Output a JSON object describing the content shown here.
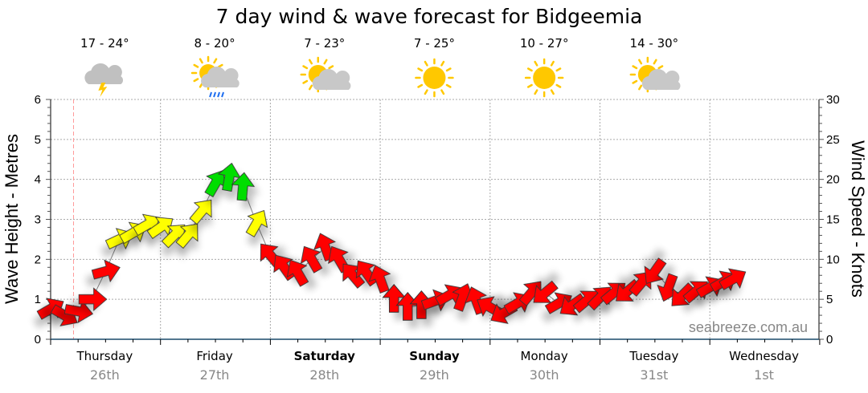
{
  "chart_data": {
    "type": "scatter",
    "title": "7 day wind & wave forecast for Bidgeemia",
    "ylabel_left": "Wave Height - Metres",
    "ylabel_right": "Wind Speed - Knots",
    "ylim_left": [
      0,
      6
    ],
    "ylim_right": [
      0,
      30
    ],
    "yticks_left": [
      "0",
      "1",
      "2",
      "3",
      "4",
      "5",
      "6"
    ],
    "yticks_right": [
      "0",
      "5",
      "10",
      "15",
      "20",
      "25",
      "30"
    ],
    "grid": true,
    "days": [
      {
        "name": "Thursday",
        "date": "26th",
        "bold": false,
        "temp": "17 - 24°",
        "icon": "storm-icon"
      },
      {
        "name": "Friday",
        "date": "27th",
        "bold": false,
        "temp": "8 - 20°",
        "icon": "sun-cloud-rain-icon"
      },
      {
        "name": "Saturday",
        "date": "28th",
        "bold": true,
        "temp": "7 - 23°",
        "icon": "partly-cloudy-icon"
      },
      {
        "name": "Sunday",
        "date": "29th",
        "bold": true,
        "temp": "7 - 25°",
        "icon": "sunny-icon"
      },
      {
        "name": "Monday",
        "date": "30th",
        "bold": false,
        "temp": "10 - 27°",
        "icon": "sunny-icon"
      },
      {
        "name": "Tuesday",
        "date": "31st",
        "bold": false,
        "temp": "14 - 30°",
        "icon": "partly-cloudy-icon"
      },
      {
        "name": "Wednesday",
        "date": "1st",
        "bold": false
      }
    ],
    "wind_series": {
      "fields": [
        "hour",
        "knots",
        "direction_deg"
      ],
      "colors": {
        "light": "#ff0000",
        "moderate": "#ffff00",
        "strong": "#00dd00"
      },
      "points": [
        [
          0,
          3.8,
          60
        ],
        [
          3,
          3.0,
          120
        ],
        [
          6,
          3.5,
          100
        ],
        [
          9,
          5.0,
          90
        ],
        [
          12,
          8.5,
          75
        ],
        [
          15,
          12.5,
          65
        ],
        [
          18,
          13.3,
          60
        ],
        [
          21,
          14.3,
          60
        ],
        [
          24,
          14,
          55
        ],
        [
          27,
          13,
          45
        ],
        [
          30,
          13,
          40
        ],
        [
          33,
          16,
          40
        ],
        [
          36,
          19.5,
          30
        ],
        [
          39,
          20.2,
          10
        ],
        [
          42,
          19,
          5
        ],
        [
          45,
          14.5,
          30
        ],
        [
          48,
          10.5,
          320
        ],
        [
          51,
          9,
          325
        ],
        [
          54,
          8.3,
          330
        ],
        [
          57,
          10,
          330
        ],
        [
          60,
          11.5,
          340
        ],
        [
          63,
          10,
          330
        ],
        [
          66,
          8,
          320
        ],
        [
          69,
          8.3,
          325
        ],
        [
          72,
          7.5,
          340
        ],
        [
          75,
          5,
          0
        ],
        [
          78,
          4,
          0
        ],
        [
          81,
          4.2,
          0
        ],
        [
          84,
          4.8,
          70
        ],
        [
          87,
          5.5,
          60
        ],
        [
          90,
          5.2,
          20
        ],
        [
          93,
          4.8,
          340
        ],
        [
          96,
          4,
          300
        ],
        [
          99,
          3.3,
          240
        ],
        [
          102,
          4.5,
          60
        ],
        [
          105,
          5.8,
          40
        ],
        [
          108,
          5.8,
          230
        ],
        [
          111,
          4.5,
          60
        ],
        [
          114,
          4.3,
          235
        ],
        [
          117,
          4.8,
          50
        ],
        [
          120,
          5.2,
          45
        ],
        [
          123,
          5.8,
          50
        ],
        [
          126,
          6,
          230
        ],
        [
          129,
          7,
          40
        ],
        [
          132,
          8.5,
          215
        ],
        [
          135,
          6.5,
          200
        ],
        [
          138,
          5.5,
          225
        ],
        [
          141,
          6,
          50
        ],
        [
          144,
          6.5,
          60
        ],
        [
          147,
          7.2,
          60
        ],
        [
          149,
          7.5,
          60
        ]
      ]
    },
    "now_marker_hour": 5
  },
  "watermark": "seabreeze.com.au"
}
